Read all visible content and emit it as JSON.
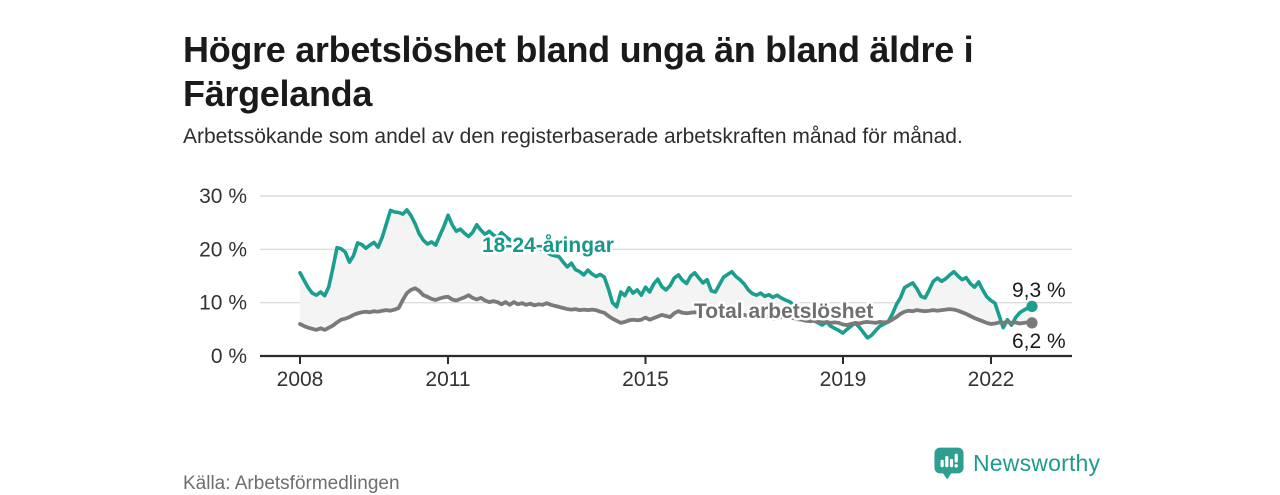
{
  "header": {
    "title": "Högre arbetslöshet bland unga än bland äldre i Färgelanda",
    "subtitle": "Arbetssökande som andel av den registerbaserade arbetskraften månad för månad."
  },
  "footer": {
    "source": "Källa: Arbetsförmedlingen",
    "brand_name": "Newsworthy",
    "brand_icon": "newsworthy-chart-bubble-icon",
    "brand_color": "#2E9E90"
  },
  "chart_data": {
    "type": "line",
    "title": "Högre arbetslöshet bland unga än bland äldre i Färgelanda",
    "subtitle": "Arbetssökande som andel av den registerbaserade arbetskraften månad för månad.",
    "x_unit": "month",
    "x_start_year": 2008,
    "x_end": "2022-11",
    "x_ticks": [
      "2008",
      "2011",
      "2015",
      "2019",
      "2022"
    ],
    "y_ticks": [
      "30 %",
      "20 %",
      "10 %",
      "0 %"
    ],
    "y_tick_values": [
      30,
      20,
      10,
      0
    ],
    "ylim": [
      0,
      30
    ],
    "grid": "horizontal",
    "fill_between_color": "#f4f4f4",
    "axis_color": "#2b2b2b",
    "gridline_color": "#dcdcdc",
    "series": [
      {
        "name": "18-24-åringar",
        "color": "#1A9E8F",
        "label_color": "#17988A",
        "end_label": "9,3 %",
        "end_value": 9.3,
        "values": [
          15.6,
          14.2,
          12.8,
          11.8,
          11.4,
          12.0,
          11.3,
          13.0,
          16.5,
          20.3,
          20.1,
          19.5,
          17.6,
          18.8,
          21.2,
          20.9,
          20.2,
          20.8,
          21.3,
          20.4,
          22.3,
          24.8,
          27.3,
          27.0,
          26.9,
          26.6,
          27.4,
          26.3,
          24.8,
          22.9,
          21.7,
          21.0,
          21.4,
          20.8,
          22.6,
          24.3,
          26.4,
          24.6,
          23.4,
          23.8,
          23.0,
          22.4,
          23.2,
          24.6,
          23.6,
          22.8,
          23.4,
          22.7,
          22.2,
          23.1,
          22.4,
          21.8,
          21.2,
          21.6,
          20.8,
          21.3,
          20.6,
          20.1,
          20.5,
          19.8,
          19.4,
          19.0,
          18.8,
          18.6,
          17.6,
          16.7,
          17.4,
          16.2,
          15.8,
          15.2,
          16.1,
          15.4,
          14.9,
          15.3,
          14.8,
          12.6,
          10.0,
          9.2,
          12.0,
          11.3,
          12.8,
          11.8,
          12.4,
          11.4,
          12.9,
          12.0,
          13.5,
          14.4,
          13.0,
          12.4,
          13.2,
          14.6,
          15.2,
          14.2,
          13.6,
          15.0,
          15.6,
          14.6,
          13.7,
          14.3,
          12.2,
          12.0,
          13.4,
          14.8,
          15.3,
          15.8,
          14.9,
          14.3,
          13.5,
          12.4,
          11.7,
          11.4,
          11.8,
          11.2,
          11.5,
          11.0,
          11.4,
          10.9,
          10.5,
          10.2,
          9.6,
          9.0,
          8.4,
          7.8,
          7.2,
          6.6,
          6.2,
          5.8,
          6.4,
          5.6,
          5.2,
          4.8,
          4.3,
          5.0,
          5.6,
          6.2,
          5.4,
          4.4,
          3.4,
          3.9,
          4.8,
          5.6,
          6.0,
          6.4,
          7.8,
          9.6,
          10.9,
          12.8,
          13.3,
          13.7,
          12.6,
          11.2,
          10.9,
          12.4,
          14.0,
          14.6,
          14.0,
          14.5,
          15.2,
          15.8,
          15.0,
          14.3,
          14.7,
          13.6,
          12.9,
          13.9,
          12.4,
          11.1,
          10.4,
          9.9,
          7.6,
          5.3,
          6.8,
          5.8,
          7.2,
          8.1,
          8.6,
          9.0,
          9.3
        ]
      },
      {
        "name": "Total arbetslöshet",
        "color": "#7A7A7A",
        "label_color": "#6F6F6F",
        "end_label": "6,2 %",
        "end_value": 6.2,
        "values": [
          6.0,
          5.6,
          5.3,
          5.1,
          4.9,
          5.2,
          4.9,
          5.3,
          5.7,
          6.3,
          6.8,
          7.0,
          7.3,
          7.7,
          8.0,
          8.2,
          8.3,
          8.2,
          8.4,
          8.3,
          8.5,
          8.6,
          8.5,
          8.7,
          9.0,
          10.5,
          11.8,
          12.4,
          12.7,
          12.2,
          11.4,
          11.1,
          10.7,
          10.5,
          10.8,
          11.0,
          11.1,
          10.6,
          10.4,
          10.7,
          11.0,
          11.4,
          10.9,
          10.6,
          10.9,
          10.4,
          10.1,
          10.3,
          10.1,
          9.7,
          10.1,
          9.6,
          10.1,
          9.7,
          9.9,
          9.6,
          9.8,
          9.5,
          9.7,
          9.6,
          9.9,
          9.6,
          9.4,
          9.2,
          9.0,
          8.8,
          8.7,
          8.8,
          8.6,
          8.7,
          8.6,
          8.7,
          8.6,
          8.3,
          8.1,
          7.5,
          7.0,
          6.6,
          6.2,
          6.4,
          6.7,
          6.8,
          6.7,
          6.8,
          7.2,
          6.8,
          7.1,
          7.4,
          7.7,
          7.5,
          7.3,
          8.0,
          8.4,
          8.1,
          8.0,
          8.1,
          8.2,
          8.0,
          8.1,
          7.9,
          8.0,
          8.1,
          7.9,
          8.0,
          8.2,
          8.0,
          7.9,
          7.8,
          7.7,
          7.5,
          7.6,
          7.4,
          7.3,
          7.4,
          7.2,
          7.0,
          7.1,
          7.3,
          7.2,
          7.3,
          7.1,
          6.9,
          6.8,
          6.6,
          6.5,
          6.6,
          6.4,
          6.3,
          6.4,
          6.2,
          6.3,
          6.2,
          5.9,
          5.8,
          6.0,
          6.2,
          6.1,
          6.3,
          6.4,
          6.3,
          6.2,
          6.4,
          6.3,
          6.4,
          6.8,
          7.3,
          7.9,
          8.3,
          8.5,
          8.4,
          8.6,
          8.5,
          8.4,
          8.5,
          8.6,
          8.5,
          8.6,
          8.7,
          8.8,
          8.7,
          8.5,
          8.2,
          7.9,
          7.5,
          7.1,
          6.8,
          6.5,
          6.2,
          6.0,
          6.1,
          6.3,
          6.2,
          6.4,
          6.2,
          6.3,
          6.1,
          6.2,
          6.3,
          6.2
        ]
      }
    ]
  }
}
